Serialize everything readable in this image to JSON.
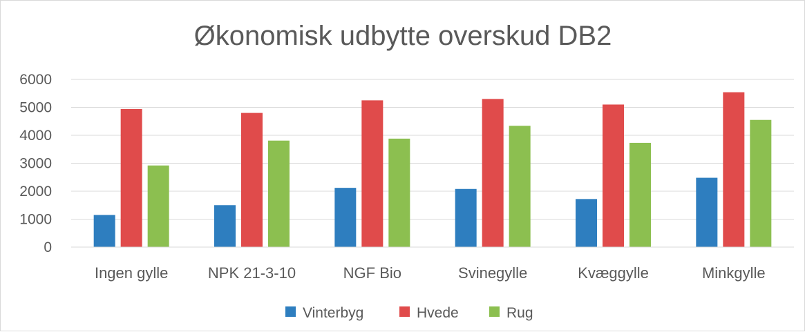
{
  "chart_data": {
    "type": "bar",
    "title": "Økonomisk udbytte overskud DB2",
    "xlabel": "",
    "ylabel": "",
    "ylim": [
      0,
      6000
    ],
    "yticks": [
      0,
      1000,
      2000,
      3000,
      4000,
      5000,
      6000
    ],
    "grid": true,
    "legend_position": "bottom",
    "categories": [
      "Ingen gylle",
      "NPK 21-3-10",
      "NGF Bio",
      "Svinegylle",
      "Kvæggylle",
      "Minkgylle"
    ],
    "series": [
      {
        "name": "Vinterbyg",
        "color": "#2e7ebf",
        "values": [
          1150,
          1500,
          2120,
          2080,
          1720,
          2480
        ]
      },
      {
        "name": "Hvede",
        "color": "#e04b4b",
        "values": [
          4940,
          4800,
          5250,
          5300,
          5100,
          5540
        ]
      },
      {
        "name": "Rug",
        "color": "#8cbf50",
        "values": [
          2920,
          3810,
          3880,
          4340,
          3730,
          4550
        ]
      }
    ]
  }
}
